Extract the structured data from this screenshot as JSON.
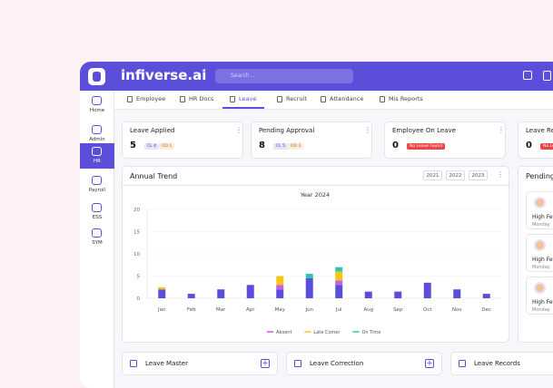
{
  "header": {
    "brand": "infiverse.ai",
    "search": "Search..."
  },
  "sidebar": [
    "Home",
    "Admin",
    "HR",
    "Payroll",
    "ESS",
    "SYM"
  ],
  "tabs": [
    "Employee",
    "HR Docs",
    "Leave",
    "Recruit",
    "Attendance",
    "Mis Reports"
  ],
  "cards": [
    {
      "title": "Leave Applied",
      "value": 5,
      "badges": [
        "CL 4",
        "OD 1"
      ]
    },
    {
      "title": "Pending Approval",
      "value": 8,
      "badges": [
        "CL 5",
        "OD 3"
      ]
    },
    {
      "title": "Employee On Leave",
      "value": 0,
      "badges": [
        "No Leave Found"
      ]
    },
    {
      "title": "Leave Rejected",
      "value": 0,
      "badges": [
        "No Leave Found"
      ]
    }
  ],
  "trend": {
    "title": "Annual Trend",
    "years": [
      "2021",
      "2022",
      "2023"
    ]
  },
  "chart_data": {
    "type": "stacked-bar",
    "title": "Year 2024",
    "categories": [
      "Jan",
      "Feb",
      "Mar",
      "Apr",
      "May",
      "Jun",
      "Jul",
      "Aug",
      "Sep",
      "Oct",
      "Nov",
      "Dec"
    ],
    "series": [
      {
        "color": "#5b4fd9",
        "values": [
          2,
          1,
          2,
          3,
          2,
          4.5,
          3,
          1.5,
          1.5,
          3.5,
          2,
          1
        ]
      },
      {
        "name": "Absent",
        "color": "#c45fe6",
        "values": [
          0,
          0,
          0,
          0,
          1,
          0,
          1,
          0,
          0,
          0,
          0,
          0
        ]
      },
      {
        "name": "Late Comer",
        "color": "#f5c518",
        "values": [
          0.5,
          0,
          0,
          0,
          2,
          0,
          2,
          0,
          0,
          0,
          0,
          0
        ]
      },
      {
        "name": "On Time",
        "color": "#2ec4b6",
        "values": [
          0,
          0,
          0,
          0,
          0,
          1,
          1,
          0,
          0,
          0,
          0,
          0
        ]
      }
    ],
    "ylim": [
      0,
      20
    ],
    "yticks": [
      0,
      5,
      10,
      15,
      20
    ],
    "grid": true
  },
  "pending": {
    "title": "Pending Leaves",
    "items": [
      {
        "name": "High Fever",
        "day": "Monday"
      },
      {
        "name": "High Fever",
        "day": "Monday"
      },
      {
        "name": "High Fever",
        "day": "Monday"
      }
    ]
  },
  "bottom": [
    "Leave Master",
    "Leave Correction",
    "Leave Records"
  ]
}
